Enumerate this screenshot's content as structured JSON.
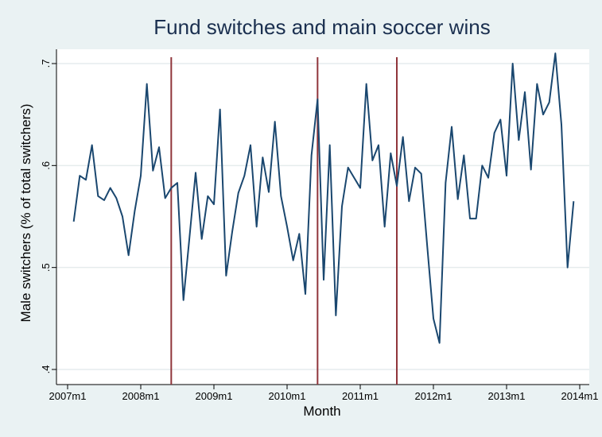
{
  "chart_data": {
    "type": "line",
    "title": "Fund switches and main soccer wins",
    "xlabel": "Month",
    "ylabel": "Male switchers (% of total switchers)",
    "x_ticks": [
      "2007m1",
      "2008m1",
      "2009m1",
      "2010m1",
      "2011m1",
      "2012m1",
      "2013m1",
      "2014m1"
    ],
    "y_ticks": [
      ".4",
      ".5",
      ".6",
      ".7"
    ],
    "ylim": [
      0.4,
      0.7
    ],
    "grid": true,
    "line_color": "#1a476f",
    "vline_color": "#90353b",
    "vertical_lines_months": [
      17,
      41,
      54
    ],
    "series": [
      {
        "values": [
          0.545,
          0.59,
          0.586,
          0.62,
          0.57,
          0.566,
          0.578,
          0.568,
          0.55,
          0.512,
          0.555,
          0.59,
          0.68,
          0.595,
          0.618,
          0.568,
          0.578,
          0.583,
          0.468,
          0.53,
          0.593,
          0.528,
          0.57,
          0.562,
          0.655,
          0.492,
          0.535,
          0.573,
          0.59,
          0.62,
          0.54,
          0.608,
          0.574,
          0.643,
          0.57,
          0.54,
          0.507,
          0.533,
          0.474,
          0.61,
          0.665,
          0.488,
          0.62,
          0.453,
          0.56,
          0.598,
          0.588,
          0.578,
          0.68,
          0.605,
          0.62,
          0.54,
          0.612,
          0.58,
          0.628,
          0.565,
          0.598,
          0.592,
          0.52,
          0.45,
          0.426,
          0.583,
          0.638,
          0.567,
          0.61,
          0.548,
          0.548,
          0.6,
          0.588,
          0.632,
          0.645,
          0.59,
          0.7,
          0.625,
          0.672,
          0.596,
          0.68,
          0.65,
          0.662,
          0.71,
          0.64,
          0.5,
          0.565
        ]
      }
    ]
  }
}
